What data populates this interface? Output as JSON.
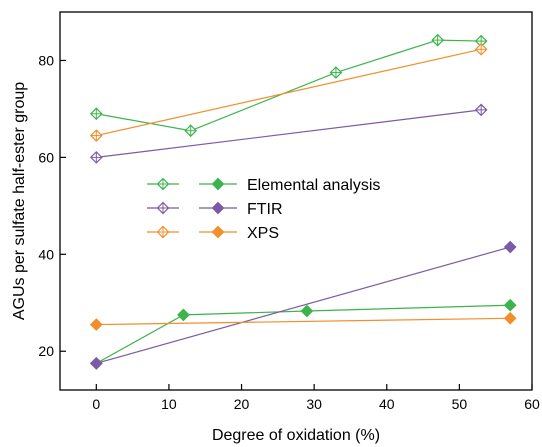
{
  "chart_data": {
    "type": "line",
    "xlabel": "Degree of oxidation (%)",
    "ylabel": "AGUs per sulfate half-ester group",
    "xlim": [
      -5,
      60
    ],
    "ylim": [
      12,
      90
    ],
    "x_ticks": [
      0,
      10,
      20,
      30,
      40,
      50,
      60
    ],
    "y_ticks": [
      20,
      40,
      60,
      80
    ],
    "grid": false,
    "legend_position": "center-left",
    "legend": [
      {
        "label": "Elemental analysis",
        "color": "#3cb44b"
      },
      {
        "label": "FTIR",
        "color": "#7b5aa6"
      },
      {
        "label": "XPS",
        "color": "#f28e2b"
      }
    ],
    "series": [
      {
        "method": "Elemental analysis",
        "marker": "open",
        "color": "#3cb44b",
        "x": [
          0,
          13,
          33,
          47,
          53
        ],
        "y": [
          69,
          65.5,
          77.5,
          84.2,
          84
        ]
      },
      {
        "method": "FTIR",
        "marker": "open",
        "color": "#7b5aa6",
        "x": [
          0,
          53
        ],
        "y": [
          60,
          69.8
        ]
      },
      {
        "method": "XPS",
        "marker": "open",
        "color": "#f28e2b",
        "x": [
          0,
          53
        ],
        "y": [
          64.5,
          82.3
        ]
      },
      {
        "method": "Elemental analysis",
        "marker": "filled",
        "color": "#3cb44b",
        "x": [
          0,
          12,
          29,
          57
        ],
        "y": [
          17.5,
          27.5,
          28.3,
          29.5
        ]
      },
      {
        "method": "FTIR",
        "marker": "filled",
        "color": "#7b5aa6",
        "x": [
          0,
          57
        ],
        "y": [
          17.5,
          41.5
        ]
      },
      {
        "method": "XPS",
        "marker": "filled",
        "color": "#f28e2b",
        "x": [
          0,
          57
        ],
        "y": [
          25.5,
          26.8
        ]
      }
    ]
  }
}
